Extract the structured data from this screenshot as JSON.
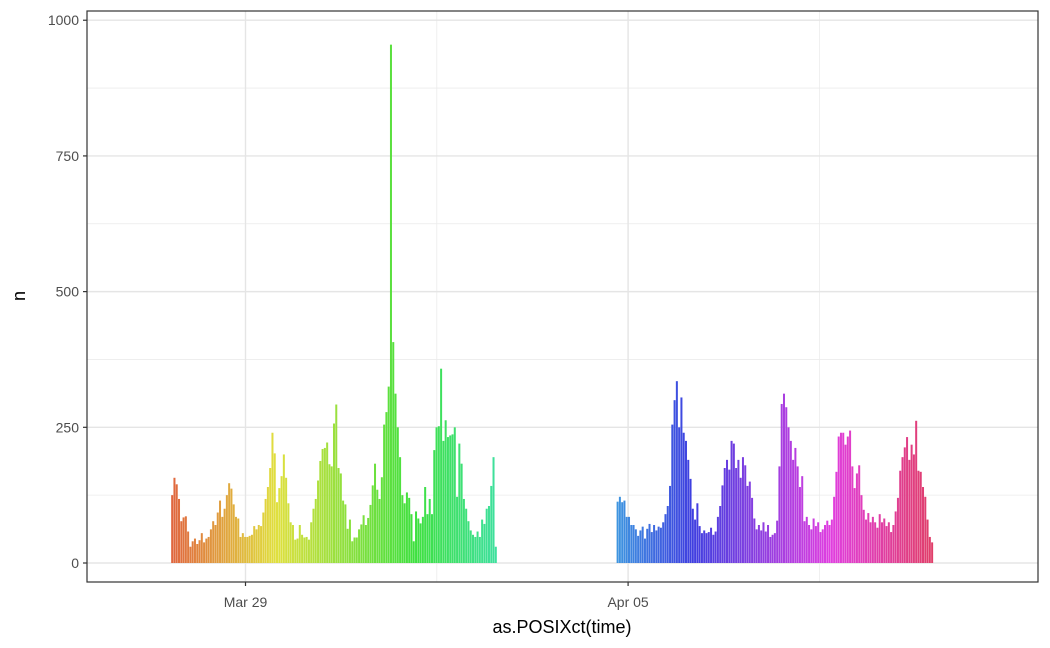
{
  "chart_data": {
    "type": "bar",
    "xlabel": "as.POSIXct(time)",
    "ylabel": "n",
    "ylim": [
      -35,
      1017
    ],
    "xlim_days": [
      -2.9,
      14.5
    ],
    "y_ticks": [
      0,
      250,
      500,
      750,
      1000
    ],
    "y_tick_labels": [
      "0",
      "250",
      "500",
      "750",
      "1000"
    ],
    "x_ticks": [
      {
        "day": 0,
        "label": "Mar 29"
      },
      {
        "day": 7,
        "label": "Apr 05"
      }
    ],
    "x_minor_days": [
      3.5,
      10.5
    ],
    "x_axis_origin": "Mar 29",
    "bar_width_days": 0.0417,
    "grid": true,
    "legend": "none",
    "series": [
      {
        "start_day": -1.36,
        "values": [
          125,
          157,
          145,
          118,
          77,
          84,
          86,
          58,
          30,
          40,
          45,
          35,
          42,
          55,
          38,
          45,
          48,
          62,
          77,
          70,
          93,
          115,
          85,
          100,
          125,
          147,
          137,
          108,
          85,
          82,
          48,
          55,
          48,
          48,
          50,
          52,
          68,
          62,
          70,
          68,
          93,
          118,
          140,
          175,
          240,
          202,
          112,
          138,
          160,
          200,
          157,
          110,
          75,
          70,
          43,
          45,
          70,
          52,
          47,
          48,
          43,
          75,
          100,
          118,
          152,
          188,
          210,
          212,
          222,
          182,
          178,
          257,
          292,
          175,
          165,
          115,
          108,
          63,
          80,
          40,
          47,
          47,
          62,
          71,
          88,
          70,
          83,
          107,
          143,
          183,
          135,
          118,
          158,
          255,
          278,
          325,
          955,
          407,
          312,
          250,
          195,
          125,
          110,
          130,
          120,
          90,
          40,
          95,
          82,
          73,
          85,
          140,
          90,
          118,
          90,
          208,
          250,
          252,
          358,
          225,
          263,
          232,
          235,
          237,
          250,
          122,
          220,
          183,
          118,
          100,
          77,
          60,
          52,
          48,
          58,
          48,
          80,
          72,
          100,
          105,
          142,
          195,
          30
        ]
      },
      {
        "start_day": 6.79,
        "values": [
          113,
          122,
          112,
          115,
          85,
          85,
          70,
          70,
          62,
          50,
          60,
          67,
          45,
          63,
          72,
          57,
          70,
          60,
          67,
          65,
          75,
          90,
          105,
          142,
          255,
          300,
          335,
          250,
          305,
          240,
          225,
          190,
          155,
          100,
          80,
          110,
          68,
          55,
          60,
          55,
          57,
          65,
          52,
          58,
          85,
          105,
          143,
          175,
          190,
          172,
          225,
          220,
          175,
          190,
          157,
          195,
          180,
          142,
          150,
          120,
          82,
          62,
          70,
          60,
          75,
          58,
          70,
          48,
          52,
          55,
          78,
          178,
          293,
          312,
          287,
          250,
          225,
          190,
          212,
          178,
          140,
          160,
          77,
          85,
          70,
          62,
          82,
          68,
          75,
          57,
          62,
          70,
          78,
          70,
          80,
          122,
          168,
          233,
          240,
          240,
          218,
          233,
          244,
          178,
          138,
          165,
          180,
          125,
          98,
          80,
          92,
          75,
          85,
          75,
          65,
          90,
          75,
          82,
          68,
          75,
          57,
          70,
          95,
          120,
          170,
          195,
          213,
          232,
          190,
          218,
          200,
          262,
          170,
          168,
          140,
          122,
          80,
          48,
          38
        ]
      }
    ]
  }
}
